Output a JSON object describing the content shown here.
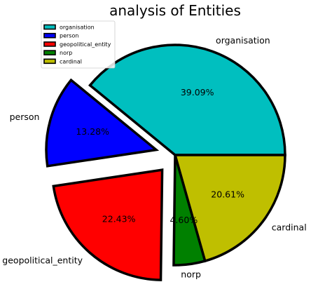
{
  "chart_data": {
    "type": "pie",
    "title": "analysis of Entities",
    "categories": [
      "organisation",
      "person",
      "geopolitical_entity",
      "norp",
      "cardinal"
    ],
    "values": [
      39.09,
      13.28,
      22.43,
      4.6,
      20.61
    ],
    "percent_labels": [
      "39.09%",
      "13.28%",
      "22.43%",
      "4.60%",
      "20.61%"
    ],
    "colors": [
      "#00bfbf",
      "#0000ff",
      "#ff0000",
      "#008000",
      "#bfbf00"
    ],
    "exploded": [
      false,
      true,
      true,
      false,
      false
    ],
    "legend": {
      "placement": "top-left",
      "entries": [
        "organisation",
        "person",
        "geopolitical_entity",
        "norp",
        "cardinal"
      ]
    }
  }
}
